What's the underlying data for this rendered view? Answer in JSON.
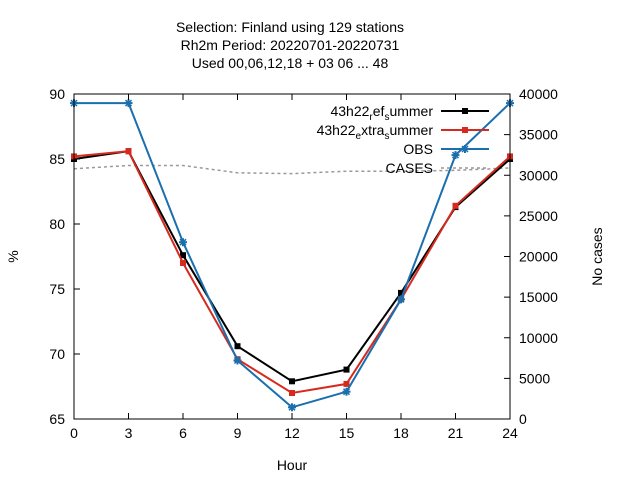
{
  "chart_data": {
    "type": "line",
    "title_lines": [
      "Selection: Finland using   129 stations",
      "Rh2m   Period: 20220701-20220731",
      "Used  00,06,12,18  + 03 06 ... 48"
    ],
    "xlabel": "Hour",
    "ylabel": "%",
    "y2label": "No cases",
    "xlim": [
      0,
      24
    ],
    "ylim": [
      65,
      90
    ],
    "y2lim": [
      0,
      40000
    ],
    "xticks": [
      0,
      3,
      6,
      9,
      12,
      15,
      18,
      21,
      24
    ],
    "yticks": [
      65,
      70,
      75,
      80,
      85,
      90
    ],
    "y2ticks": [
      0,
      5000,
      10000,
      15000,
      20000,
      25000,
      30000,
      35000,
      40000
    ],
    "x": [
      0,
      3,
      6,
      9,
      12,
      15,
      18,
      21,
      24
    ],
    "legend_position": "top-right",
    "series": [
      {
        "name": "43h22_ref_summer",
        "legend_parts": [
          [
            "43h22",
            ""
          ],
          [
            "r",
            "sub"
          ],
          [
            "ef",
            ""
          ],
          [
            "s",
            "sub"
          ],
          [
            "ummer",
            ""
          ]
        ],
        "color": "#000000",
        "axis": "y",
        "marker": "square",
        "values": [
          85.0,
          85.6,
          77.6,
          70.6,
          67.9,
          68.8,
          74.7,
          81.3,
          85.0
        ]
      },
      {
        "name": "43h22_extra_summer",
        "legend_parts": [
          [
            "43h22",
            ""
          ],
          [
            "e",
            "sub"
          ],
          [
            "xtra",
            ""
          ],
          [
            "s",
            "sub"
          ],
          [
            "ummer",
            ""
          ]
        ],
        "color": "#d62a1e",
        "axis": "y",
        "marker": "square",
        "values": [
          85.2,
          85.6,
          77.0,
          69.6,
          67.0,
          67.7,
          74.2,
          81.4,
          85.2
        ]
      },
      {
        "name": "OBS",
        "legend_parts": [
          [
            "OBS",
            ""
          ]
        ],
        "color": "#1a6fae",
        "axis": "y",
        "marker": "star",
        "values": [
          89.3,
          89.3,
          78.6,
          69.5,
          65.9,
          67.1,
          74.2,
          85.3,
          89.3
        ]
      },
      {
        "name": "CASES",
        "legend_parts": [
          [
            "CASES",
            ""
          ]
        ],
        "color": "#999999",
        "axis": "y2",
        "marker": "none",
        "dashed": true,
        "values": [
          30800,
          31200,
          31200,
          30300,
          30200,
          30500,
          30500,
          30600,
          30900
        ]
      }
    ]
  }
}
